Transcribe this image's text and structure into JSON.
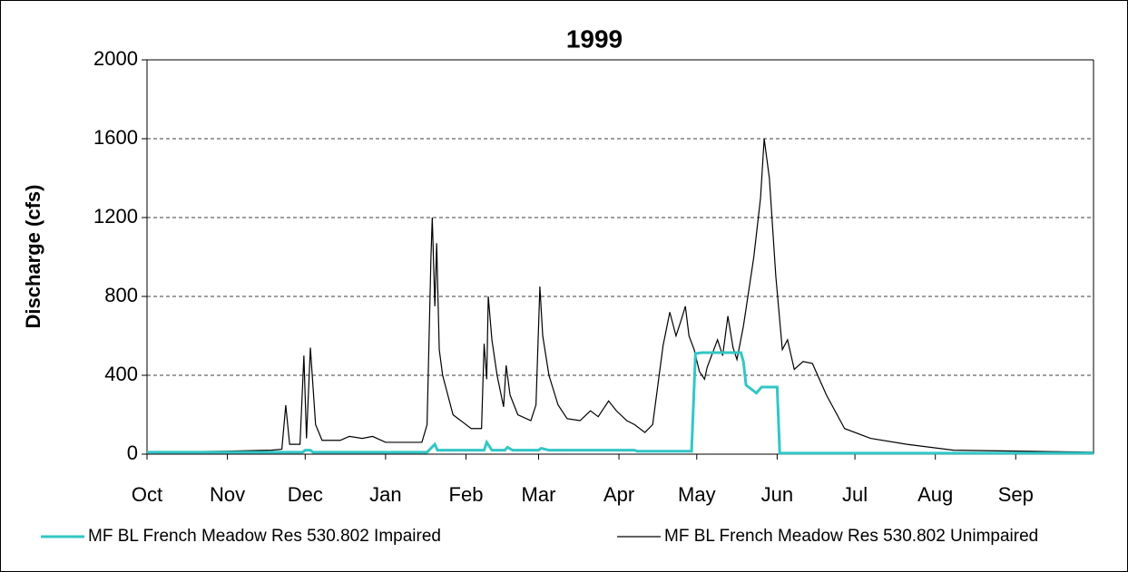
{
  "chart_data": {
    "type": "line",
    "title": "1999",
    "y_label": "Discharge (cfs)",
    "xlim": [
      0,
      365
    ],
    "xticks": [
      {
        "value": 0,
        "label": "Oct"
      },
      {
        "value": 31,
        "label": "Nov"
      },
      {
        "value": 61,
        "label": "Dec"
      },
      {
        "value": 92,
        "label": "Jan"
      },
      {
        "value": 123,
        "label": "Feb"
      },
      {
        "value": 151,
        "label": "Mar"
      },
      {
        "value": 182,
        "label": "Apr"
      },
      {
        "value": 212,
        "label": "May"
      },
      {
        "value": 243,
        "label": "Jun"
      },
      {
        "value": 273,
        "label": "Jul"
      },
      {
        "value": 304,
        "label": "Aug"
      },
      {
        "value": 335,
        "label": "Sep"
      }
    ],
    "ylim": [
      0,
      2000
    ],
    "yticks": [
      0,
      400,
      800,
      1200,
      1600,
      2000
    ],
    "grid": true,
    "legend": "bottom",
    "series": [
      {
        "name": "MF BL French Meadow Res 530.802 Impaired",
        "color": "#33c6c6",
        "x": [
          0,
          60,
          61,
          63,
          64,
          108,
          111,
          112,
          130,
          131,
          133,
          138,
          139,
          141,
          151,
          152,
          155,
          188,
          189,
          210,
          211.5,
          214,
          229,
          230,
          231,
          233,
          235,
          237,
          243,
          244,
          340,
          365
        ],
        "values": [
          10,
          10,
          20,
          20,
          10,
          10,
          50,
          20,
          20,
          60,
          20,
          20,
          35,
          20,
          20,
          30,
          20,
          20,
          15,
          15,
          510,
          515,
          515,
          470,
          350,
          330,
          310,
          340,
          340,
          5,
          5,
          5
        ]
      },
      {
        "name": "MF BL French Meadow Res 530.802 Unimpaired",
        "color": "#000000",
        "x": [
          0,
          31,
          48,
          52,
          53.5,
          55,
          59,
          60.5,
          61.5,
          63,
          65,
          67.5,
          74.5,
          78,
          83,
          87,
          92,
          106,
          108,
          109.5,
          110,
          111,
          111.7,
          112.7,
          114,
          118,
          122,
          125,
          129,
          130,
          131,
          131.6,
          133,
          135,
          137.5,
          138.5,
          140,
          143,
          148,
          150,
          151.5,
          152.6,
          155,
          158.5,
          162,
          167,
          171,
          174,
          178,
          181,
          185,
          188,
          192,
          195,
          199,
          201.6,
          204,
          206,
          207.6,
          209,
          211,
          213,
          215,
          216,
          220,
          222,
          224,
          226,
          227.5,
          230,
          234,
          236.6,
          238,
          240,
          242.5,
          245,
          247,
          249.6,
          253,
          256.6,
          262,
          269,
          279,
          293,
          311,
          365
        ],
        "values": [
          10,
          15,
          20,
          25,
          248,
          50,
          50,
          500,
          80,
          540,
          150,
          70,
          70,
          90,
          80,
          90,
          60,
          60,
          150,
          1000,
          1200,
          750,
          1070,
          530,
          400,
          200,
          160,
          130,
          130,
          560,
          380,
          800,
          580,
          400,
          240,
          450,
          300,
          200,
          170,
          250,
          850,
          600,
          400,
          250,
          180,
          170,
          220,
          190,
          270,
          220,
          170,
          150,
          110,
          150,
          550,
          720,
          600,
          680,
          750,
          600,
          530,
          420,
          380,
          440,
          580,
          500,
          700,
          540,
          480,
          650,
          1000,
          1300,
          1600,
          1400,
          900,
          530,
          580,
          430,
          470,
          460,
          300,
          130,
          80,
          50,
          20,
          10
        ]
      }
    ]
  }
}
